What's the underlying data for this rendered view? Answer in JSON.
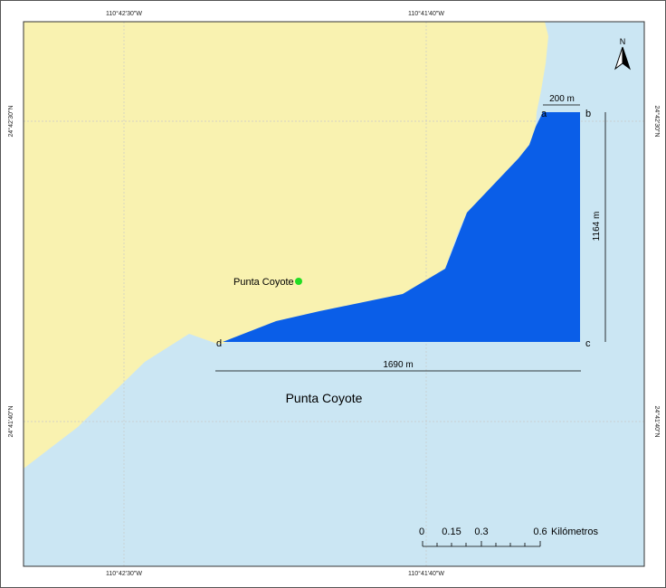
{
  "map": {
    "colors": {
      "land": "#f9f2b0",
      "sea": "#cbe6f3",
      "area": "#0a5ee8",
      "marker": "#22dd22",
      "grid": "#c9c9c9"
    },
    "graticule": {
      "top": [
        "110°42'30\"W",
        "110°41'40\"W"
      ],
      "bottom": [
        "110°42'30\"W",
        "110°41'40\"W"
      ],
      "left": [
        "24°42'30\"N",
        "24°41'40\"N"
      ],
      "right": [
        "24°42'30\"N",
        "24°41'40\"N"
      ]
    },
    "north_arrow": "N",
    "place_label": "Punta Coyote",
    "sea_label": "Punta Coyote",
    "corners": {
      "a": "a",
      "b": "b",
      "c": "c",
      "d": "d"
    },
    "dimensions": {
      "top_width": "200 m",
      "height": "1164 m",
      "bottom_width": "1690 m"
    },
    "scale_bar": {
      "ticks": [
        "0",
        "0.15",
        "0.3",
        "0.6"
      ],
      "unit": "Kilómetros"
    }
  }
}
